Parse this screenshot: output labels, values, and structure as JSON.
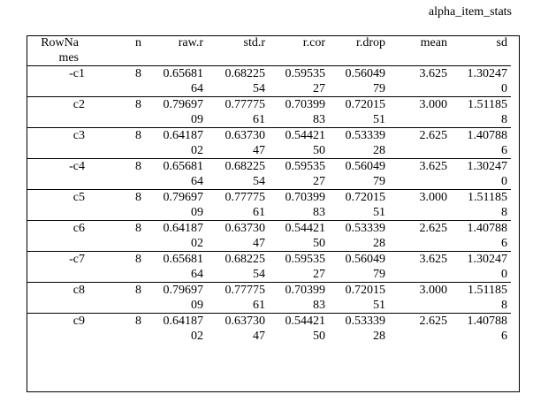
{
  "title": "alpha_item_stats",
  "table": {
    "header": [
      "RowNames",
      "n",
      "raw.r",
      "std.r",
      "r.cor",
      "r.drop",
      "mean",
      "sd"
    ],
    "rows": [
      [
        "-c1",
        8,
        "0.6568164",
        "0.6822554",
        "0.5953527",
        "0.5604979",
        "3.625",
        "1.302470"
      ],
      [
        "c2",
        8,
        "0.7969709",
        "0.7777561",
        "0.7039983",
        "0.7201551",
        "3.000",
        "1.511858"
      ],
      [
        "c3",
        8,
        "0.6418702",
        "0.6373047",
        "0.5442150",
        "0.5333928",
        "2.625",
        "1.407886"
      ],
      [
        "-c4",
        8,
        "0.6568164",
        "0.6822554",
        "0.5953527",
        "0.5604979",
        "3.625",
        "1.302470"
      ],
      [
        "c5",
        8,
        "0.7969709",
        "0.7777561",
        "0.7039983",
        "0.7201551",
        "3.000",
        "1.511858"
      ],
      [
        "c6",
        8,
        "0.6418702",
        "0.6373047",
        "0.5442150",
        "0.5333928",
        "2.625",
        "1.407886"
      ],
      [
        "-c7",
        8,
        "0.6568164",
        "0.6822554",
        "0.5953527",
        "0.5604979",
        "3.625",
        "1.302470"
      ],
      [
        "c8",
        8,
        "0.7969709",
        "0.7777561",
        "0.7039983",
        "0.7201551",
        "3.000",
        "1.511858"
      ],
      [
        "c9",
        8,
        "0.6418702",
        "0.6373047",
        "0.5442150",
        "0.5333928",
        "2.625",
        "1.407886"
      ]
    ]
  }
}
